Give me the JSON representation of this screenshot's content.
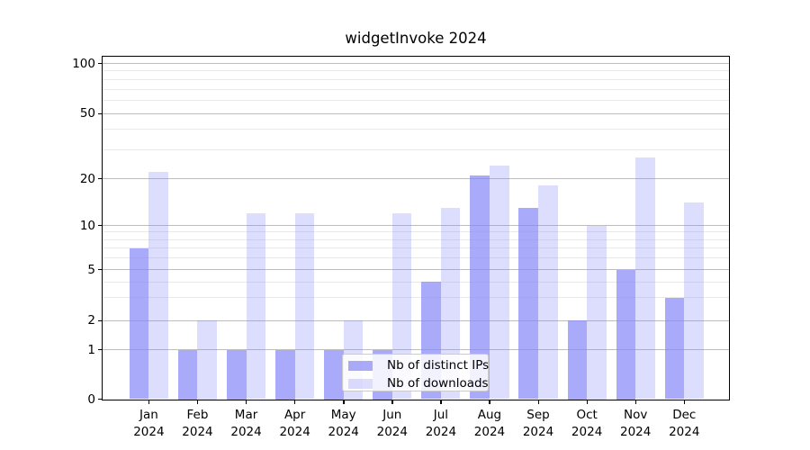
{
  "chart_data": {
    "type": "bar",
    "title": "widgetInvoke 2024",
    "categories": [
      "Jan 2024",
      "Feb 2024",
      "Mar 2024",
      "Apr 2024",
      "May 2024",
      "Jun 2024",
      "Jul 2024",
      "Aug 2024",
      "Sep 2024",
      "Oct 2024",
      "Nov 2024",
      "Dec 2024"
    ],
    "series": [
      {
        "name": "Nb of distinct IPs",
        "color": "#8686f8",
        "alpha": 0.7,
        "values": [
          7,
          1,
          1,
          1,
          1,
          1,
          4,
          21,
          13,
          2,
          5,
          3
        ]
      },
      {
        "name": "Nb of downloads",
        "color": "#8686f8",
        "alpha": 0.28,
        "values": [
          22,
          2,
          12,
          12,
          2,
          12,
          13,
          24,
          18,
          10,
          27,
          14
        ]
      }
    ],
    "yscale": "symlog",
    "ylim": [
      0,
      120
    ],
    "yticks": [
      0,
      1,
      2,
      5,
      10,
      20,
      50,
      100
    ],
    "minor_yticks": [
      3,
      4,
      6,
      7,
      8,
      9,
      30,
      40,
      60,
      70,
      80,
      90
    ],
    "grid": "on",
    "legend_position": "lower center"
  },
  "colors": {
    "bar_fill_distinct_ips": "#aaaaf8",
    "bar_fill_downloads": "#ddddfc",
    "grid_major": "#bdbdbd",
    "grid_minor": "#e9e9e9",
    "axis": "#000000",
    "background": "#ffffff"
  }
}
